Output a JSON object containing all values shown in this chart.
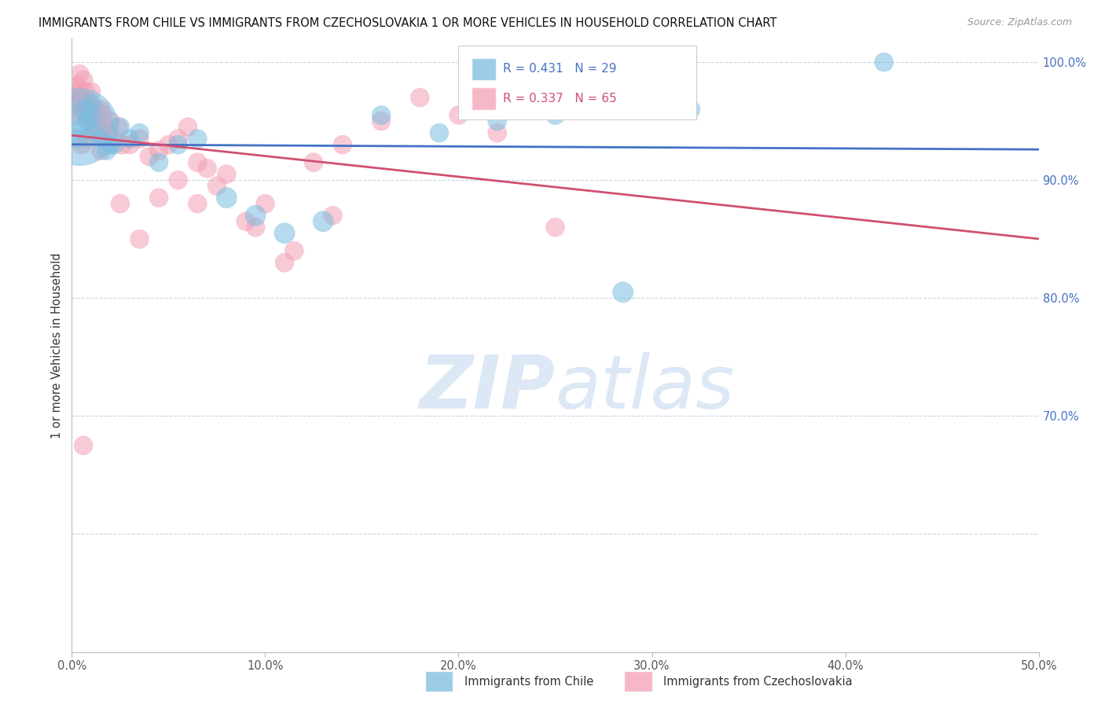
{
  "title": "IMMIGRANTS FROM CHILE VS IMMIGRANTS FROM CZECHOSLOVAKIA 1 OR MORE VEHICLES IN HOUSEHOLD CORRELATION CHART",
  "source": "Source: ZipAtlas.com",
  "ylabel": "1 or more Vehicles in Household",
  "legend_chile_R": 0.431,
  "legend_chile_N": 29,
  "legend_czech_R": 0.337,
  "legend_czech_N": 65,
  "chile_color": "#7bbde0",
  "czech_color": "#f4a0b5",
  "chile_line_color": "#4472c4",
  "czech_line_color": "#d05070",
  "background_color": "#ffffff",
  "grid_color": "#c8d4e8",
  "watermark_color": "#dce8f5",
  "xlim": [
    0.0,
    50.0
  ],
  "ylim": [
    50.0,
    102.0
  ],
  "ytick_vals": [
    60.0,
    70.0,
    80.0,
    90.0,
    100.0
  ],
  "ytick_labels": [
    "",
    "70.0%",
    "80.0%",
    "90.0%",
    "100.0%"
  ],
  "xtick_vals": [
    0,
    10,
    20,
    30,
    40,
    50
  ],
  "xtick_labels": [
    "0.0%",
    "10.0%",
    "20.0%",
    "30.0%",
    "40.0%",
    "50.0%"
  ],
  "chile_x": [
    0.3,
    0.5,
    0.6,
    0.8,
    1.0,
    1.2,
    1.5,
    1.8,
    2.0,
    2.5,
    3.0,
    3.5,
    4.5,
    5.5,
    6.5,
    8.0,
    9.5,
    11.0,
    13.0,
    16.0,
    19.0,
    22.0,
    25.0,
    28.5,
    32.0,
    42.0,
    0.4,
    1.0,
    2.2
  ],
  "chile_y": [
    93.5,
    94.5,
    96.0,
    95.0,
    95.5,
    94.0,
    93.5,
    92.5,
    93.0,
    94.5,
    93.5,
    94.0,
    91.5,
    93.0,
    93.5,
    88.5,
    87.0,
    85.5,
    86.5,
    95.5,
    94.0,
    95.0,
    95.5,
    80.5,
    96.0,
    100.0,
    94.5,
    96.5,
    93.0
  ],
  "chile_sizes": [
    15,
    15,
    15,
    15,
    15,
    15,
    15,
    15,
    15,
    15,
    15,
    15,
    15,
    15,
    15,
    18,
    18,
    18,
    18,
    15,
    15,
    15,
    15,
    18,
    15,
    15,
    250,
    15,
    15
  ],
  "czech_x": [
    0.1,
    0.2,
    0.3,
    0.3,
    0.4,
    0.4,
    0.5,
    0.5,
    0.6,
    0.6,
    0.7,
    0.7,
    0.8,
    0.8,
    0.9,
    1.0,
    1.0,
    1.1,
    1.2,
    1.3,
    1.4,
    1.5,
    1.6,
    1.7,
    1.8,
    2.0,
    2.2,
    2.4,
    2.6,
    3.0,
    3.5,
    4.0,
    4.5,
    5.0,
    5.5,
    6.0,
    6.5,
    7.0,
    8.0,
    9.0,
    10.0,
    11.0,
    12.5,
    14.0,
    16.0,
    18.0,
    20.0,
    22.0,
    25.0,
    27.5,
    0.5,
    1.5,
    2.5,
    3.5,
    4.5,
    5.5,
    6.5,
    7.5,
    9.5,
    11.5,
    13.5,
    0.3,
    0.8,
    1.2,
    0.6
  ],
  "czech_y": [
    96.5,
    97.5,
    98.0,
    96.0,
    99.0,
    97.5,
    96.5,
    97.0,
    96.0,
    98.5,
    96.5,
    97.5,
    95.5,
    96.5,
    95.0,
    97.5,
    95.5,
    96.0,
    94.5,
    95.5,
    94.0,
    96.0,
    95.5,
    94.5,
    94.0,
    95.0,
    93.5,
    94.5,
    93.0,
    93.0,
    93.5,
    92.0,
    92.5,
    93.0,
    93.5,
    94.5,
    91.5,
    91.0,
    90.5,
    86.5,
    88.0,
    83.0,
    91.5,
    93.0,
    95.0,
    97.0,
    95.5,
    94.0,
    86.0,
    96.5,
    93.0,
    92.5,
    88.0,
    85.0,
    88.5,
    90.0,
    88.0,
    89.5,
    86.0,
    84.0,
    87.0,
    95.5,
    93.5,
    96.0,
    67.5
  ],
  "czech_sizes": [
    15,
    15,
    15,
    15,
    15,
    15,
    15,
    15,
    15,
    15,
    15,
    15,
    15,
    15,
    15,
    15,
    15,
    15,
    15,
    15,
    15,
    15,
    15,
    15,
    15,
    15,
    15,
    15,
    15,
    15,
    15,
    15,
    15,
    15,
    15,
    15,
    15,
    15,
    15,
    15,
    15,
    15,
    15,
    15,
    15,
    15,
    15,
    15,
    15,
    15,
    15,
    15,
    15,
    15,
    15,
    15,
    15,
    15,
    15,
    15,
    15,
    15,
    15,
    15,
    15
  ]
}
